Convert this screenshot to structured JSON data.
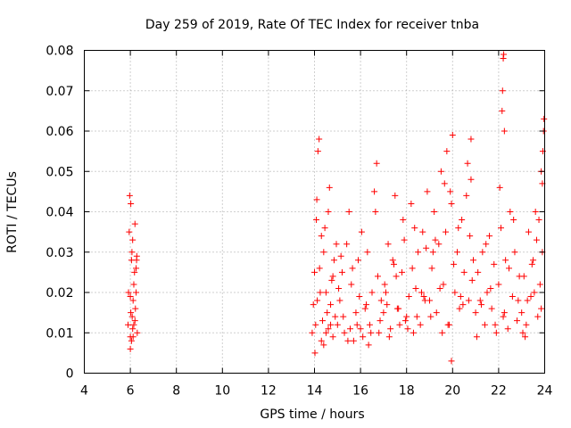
{
  "chart_data": {
    "type": "scatter",
    "title": "Day 259 of 2019, Rate Of TEC Index for receiver tnba",
    "xlabel": "GPS time / hours",
    "ylabel": "ROTI / TECUs",
    "xlim": [
      4,
      24
    ],
    "ylim": [
      0,
      0.08
    ],
    "x_ticks": [
      "4",
      "6",
      "8",
      "10",
      "12",
      "14",
      "16",
      "18",
      "20",
      "22",
      "24"
    ],
    "y_ticks": [
      "0",
      "0.01",
      "0.02",
      "0.03",
      "0.04",
      "0.05",
      "0.06",
      "0.07",
      "0.08"
    ],
    "grid": true,
    "marker": "+",
    "color": "#ff0000",
    "series": [
      {
        "name": "ROTI",
        "x": [
          5.9,
          5.92,
          5.95,
          5.97,
          6.0,
          6.02,
          6.05,
          6.07,
          6.1,
          6.12,
          6.15,
          6.18,
          6.2,
          6.22,
          6.25,
          6.27,
          6.3,
          6.0,
          6.05,
          6.1,
          6.02,
          6.08,
          6.15,
          6.2,
          6.25,
          6.0,
          6.12,
          6.28,
          13.9,
          13.95,
          14.0,
          14.05,
          14.1,
          14.15,
          14.2,
          14.25,
          14.3,
          14.35,
          14.4,
          14.45,
          14.5,
          14.55,
          14.6,
          14.65,
          14.7,
          14.75,
          14.8,
          14.85,
          14.9,
          14.95,
          14.02,
          14.08,
          14.12,
          14.22,
          14.3,
          14.4,
          14.5,
          14.6,
          14.7,
          14.8,
          15.0,
          15.1,
          15.2,
          15.3,
          15.4,
          15.5,
          15.6,
          15.7,
          15.8,
          15.9,
          16.0,
          16.1,
          16.2,
          16.3,
          16.4,
          16.5,
          16.6,
          16.7,
          16.8,
          16.9,
          15.05,
          15.25,
          15.45,
          15.65,
          15.85,
          16.05,
          16.25,
          16.45,
          16.65,
          16.85,
          15.15,
          15.55,
          15.95,
          16.35,
          16.75,
          17.0,
          17.1,
          17.2,
          17.3,
          17.4,
          17.5,
          17.6,
          17.7,
          17.8,
          17.9,
          18.0,
          18.1,
          18.2,
          18.3,
          18.4,
          18.5,
          18.6,
          18.7,
          18.8,
          18.9,
          17.05,
          17.25,
          17.45,
          17.65,
          17.85,
          18.05,
          18.25,
          18.45,
          18.65,
          18.85,
          17.15,
          17.55,
          17.95,
          18.35,
          18.75,
          19.0,
          19.1,
          19.2,
          19.3,
          19.4,
          19.5,
          19.6,
          19.7,
          19.8,
          19.9,
          20.0,
          20.1,
          20.2,
          20.3,
          20.4,
          20.5,
          20.6,
          20.7,
          20.8,
          20.9,
          19.05,
          19.25,
          19.45,
          19.65,
          19.85,
          20.05,
          20.25,
          20.45,
          20.65,
          20.85,
          19.15,
          19.55,
          19.95,
          20.35,
          20.75,
          19.75,
          19.95,
          20.8,
          21.0,
          21.1,
          21.2,
          21.3,
          21.4,
          21.5,
          21.6,
          21.7,
          21.8,
          21.9,
          22.0,
          22.1,
          22.2,
          22.3,
          22.4,
          22.5,
          22.6,
          22.7,
          22.8,
          22.9,
          21.05,
          21.25,
          21.45,
          21.65,
          21.85,
          22.05,
          22.25,
          22.45,
          22.65,
          22.85,
          22.15,
          22.17,
          22.2,
          22.22,
          22.25,
          23.0,
          23.1,
          23.2,
          23.3,
          23.4,
          23.5,
          23.6,
          23.7,
          23.8,
          23.9,
          23.05,
          23.25,
          23.45,
          23.65,
          23.85,
          23.9,
          23.92,
          23.95,
          23.97,
          23.85,
          23.15,
          23.55,
          23.75
        ],
        "y": [
          0.012,
          0.02,
          0.035,
          0.044,
          0.009,
          0.015,
          0.028,
          0.03,
          0.011,
          0.018,
          0.022,
          0.025,
          0.013,
          0.016,
          0.02,
          0.028,
          0.01,
          0.006,
          0.008,
          0.033,
          0.042,
          0.014,
          0.012,
          0.037,
          0.026,
          0.019,
          0.009,
          0.029,
          0.01,
          0.017,
          0.025,
          0.012,
          0.043,
          0.055,
          0.058,
          0.02,
          0.008,
          0.013,
          0.03,
          0.036,
          0.01,
          0.015,
          0.04,
          0.046,
          0.012,
          0.023,
          0.009,
          0.028,
          0.014,
          0.032,
          0.005,
          0.038,
          0.018,
          0.026,
          0.034,
          0.007,
          0.02,
          0.011,
          0.017,
          0.024,
          0.012,
          0.018,
          0.025,
          0.01,
          0.032,
          0.04,
          0.022,
          0.008,
          0.015,
          0.028,
          0.011,
          0.009,
          0.016,
          0.03,
          0.012,
          0.02,
          0.045,
          0.052,
          0.01,
          0.018,
          0.021,
          0.014,
          0.008,
          0.026,
          0.012,
          0.035,
          0.017,
          0.01,
          0.04,
          0.013,
          0.029,
          0.011,
          0.019,
          0.007,
          0.024,
          0.015,
          0.02,
          0.032,
          0.011,
          0.028,
          0.044,
          0.016,
          0.012,
          0.025,
          0.033,
          0.014,
          0.019,
          0.042,
          0.01,
          0.021,
          0.03,
          0.012,
          0.035,
          0.018,
          0.045,
          0.022,
          0.009,
          0.027,
          0.016,
          0.038,
          0.011,
          0.026,
          0.014,
          0.02,
          0.031,
          0.017,
          0.024,
          0.013,
          0.036,
          0.019,
          0.018,
          0.026,
          0.04,
          0.015,
          0.032,
          0.05,
          0.022,
          0.035,
          0.012,
          0.045,
          0.059,
          0.02,
          0.03,
          0.016,
          0.038,
          0.025,
          0.044,
          0.018,
          0.058,
          0.028,
          0.014,
          0.033,
          0.021,
          0.047,
          0.012,
          0.027,
          0.036,
          0.017,
          0.052,
          0.023,
          0.03,
          0.01,
          0.042,
          0.019,
          0.034,
          0.055,
          0.003,
          0.048,
          0.015,
          0.025,
          0.018,
          0.03,
          0.012,
          0.02,
          0.034,
          0.016,
          0.027,
          0.01,
          0.022,
          0.036,
          0.014,
          0.028,
          0.011,
          0.04,
          0.019,
          0.03,
          0.013,
          0.024,
          0.009,
          0.017,
          0.032,
          0.021,
          0.012,
          0.046,
          0.015,
          0.026,
          0.038,
          0.018,
          0.065,
          0.07,
          0.078,
          0.079,
          0.06,
          0.015,
          0.024,
          0.012,
          0.035,
          0.019,
          0.028,
          0.04,
          0.014,
          0.022,
          0.03,
          0.01,
          0.018,
          0.027,
          0.033,
          0.016,
          0.047,
          0.055,
          0.06,
          0.063,
          0.05,
          0.009,
          0.02,
          0.038
        ]
      }
    ]
  }
}
